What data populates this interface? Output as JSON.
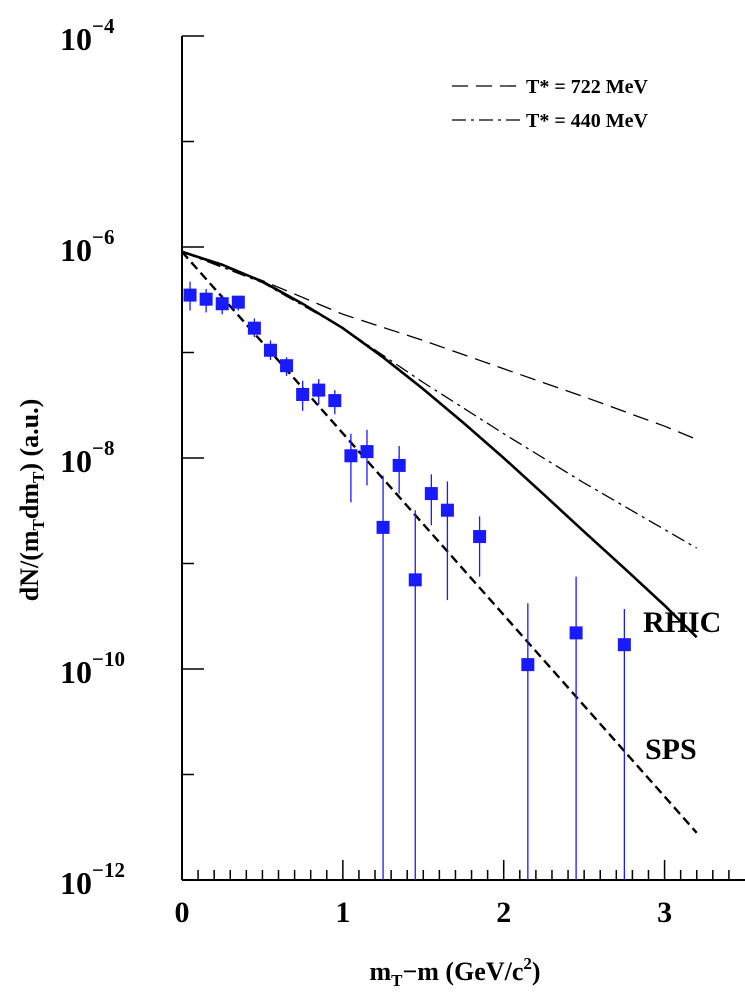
{
  "chart_data": {
    "type": "scatter",
    "title": "",
    "xlabel": {
      "main": "m",
      "sub": "T",
      "tail": "−m (GeV/c",
      "sup": "2",
      "close": ")"
    },
    "ylabel": {
      "part1": "dN/(m",
      "sub1": "T",
      "part2": "dm",
      "sub2": "T",
      "part3": ") (a.u.)"
    },
    "xlim": [
      0,
      3.5
    ],
    "ylim_log10": [
      -12,
      -4
    ],
    "y_scale": "log",
    "x_ticks": [
      0,
      1,
      2,
      3
    ],
    "x_tick_labels": [
      "0",
      "1",
      "2",
      "3"
    ],
    "y_ticks_log10": [
      -4,
      -6,
      -8,
      -10,
      -12
    ],
    "y_tick_labels": [
      {
        "base": "10",
        "exp": "−4"
      },
      {
        "base": "10",
        "exp": "−6"
      },
      {
        "base": "10",
        "exp": "−8"
      },
      {
        "base": "10",
        "exp": "−10"
      },
      {
        "base": "10",
        "exp": "−12"
      }
    ],
    "grid": false,
    "legend_position": "top-right",
    "legend": [
      {
        "label": "T* = 722 MeV",
        "style": "dashed"
      },
      {
        "label": "T* = 440 MeV",
        "style": "dash-dot"
      }
    ],
    "annotations": [
      {
        "text": "RHIC",
        "x": 3.35,
        "y": 3e-10
      },
      {
        "text": "SPS",
        "x": 3.35,
        "y": 2.5e-11
      }
    ],
    "marker_color": "#1a1aff",
    "points": [
      {
        "x": 0.05,
        "y": 3.5e-07,
        "ylo": 2.5e-07,
        "yhi": 4.7e-07
      },
      {
        "x": 0.15,
        "y": 3.2e-07,
        "ylo": 2.4e-07,
        "yhi": 4e-07
      },
      {
        "x": 0.25,
        "y": 2.9e-07,
        "ylo": 2.3e-07,
        "yhi": 3.5e-07
      },
      {
        "x": 0.35,
        "y": 3e-07,
        "ylo": 2.5e-07,
        "yhi": 3.4e-07
      },
      {
        "x": 0.45,
        "y": 1.7e-07,
        "ylo": 1.4e-07,
        "yhi": 2.1e-07
      },
      {
        "x": 0.55,
        "y": 1.05e-07,
        "ylo": 8.5e-08,
        "yhi": 1.3e-07
      },
      {
        "x": 0.65,
        "y": 7.5e-08,
        "ylo": 6e-08,
        "yhi": 9e-08
      },
      {
        "x": 0.75,
        "y": 4e-08,
        "ylo": 2.8e-08,
        "yhi": 5.4e-08
      },
      {
        "x": 0.85,
        "y": 4.4e-08,
        "ylo": 3.2e-08,
        "yhi": 5.6e-08
      },
      {
        "x": 0.95,
        "y": 3.5e-08,
        "ylo": 2.6e-08,
        "yhi": 4.4e-08
      },
      {
        "x": 1.05,
        "y": 1.05e-08,
        "ylo": 3.8e-09,
        "yhi": 1.7e-08
      },
      {
        "x": 1.15,
        "y": 1.15e-08,
        "ylo": 5.5e-09,
        "yhi": 1.85e-08
      },
      {
        "x": 1.25,
        "y": 2.2e-09,
        "ylo": 1e-12,
        "yhi": 6.8e-09
      },
      {
        "x": 1.35,
        "y": 8.5e-09,
        "ylo": 4.6e-09,
        "yhi": 1.3e-08
      },
      {
        "x": 1.45,
        "y": 7e-10,
        "ylo": 1e-12,
        "yhi": 3.2e-09
      },
      {
        "x": 1.55,
        "y": 4.6e-09,
        "ylo": 2.3e-09,
        "yhi": 7e-09
      },
      {
        "x": 1.65,
        "y": 3.2e-09,
        "ylo": 4.5e-10,
        "yhi": 6e-09
      },
      {
        "x": 1.85,
        "y": 1.8e-09,
        "ylo": 7.5e-10,
        "yhi": 2.8e-09
      },
      {
        "x": 2.15,
        "y": 1.1e-10,
        "ylo": 1e-12,
        "yhi": 4.2e-10
      },
      {
        "x": 2.45,
        "y": 2.2e-10,
        "ylo": 1e-12,
        "yhi": 7.5e-10
      },
      {
        "x": 2.75,
        "y": 1.7e-10,
        "ylo": 1e-12,
        "yhi": 3.7e-10
      }
    ],
    "series": [
      {
        "style": "solid",
        "x": [
          0,
          0.25,
          0.5,
          0.75,
          1.0,
          1.25,
          1.5,
          1.75,
          2.0,
          2.25,
          2.5,
          2.75,
          3.0,
          3.2
        ],
        "y": [
          9e-07,
          6.8e-07,
          4.7e-07,
          2.9e-07,
          1.7e-07,
          9e-08,
          4.5e-08,
          2.15e-08,
          1e-08,
          4.5e-09,
          2e-09,
          9e-10,
          4e-10,
          2e-10
        ]
      },
      {
        "style": "dashed-thin",
        "x": [
          0,
          0.5,
          1.0,
          1.5,
          2.0,
          2.5,
          3.0,
          3.2
        ],
        "y": [
          9e-07,
          4.8e-07,
          2.3e-07,
          1.3e-07,
          7e-08,
          3.8e-08,
          2e-08,
          1.5e-08
        ]
      },
      {
        "style": "dash-dot",
        "x": [
          0,
          0.5,
          1.0,
          1.5,
          2.0,
          2.5,
          3.0,
          3.2
        ],
        "y": [
          9e-07,
          4.6e-07,
          1.7e-07,
          5.2e-08,
          1.7e-08,
          5.8e-09,
          2.1e-09,
          1.4e-09
        ]
      },
      {
        "style": "dashed-thick",
        "x": [
          0,
          3.2
        ],
        "y": [
          9e-07,
          2.8e-12
        ]
      }
    ]
  }
}
